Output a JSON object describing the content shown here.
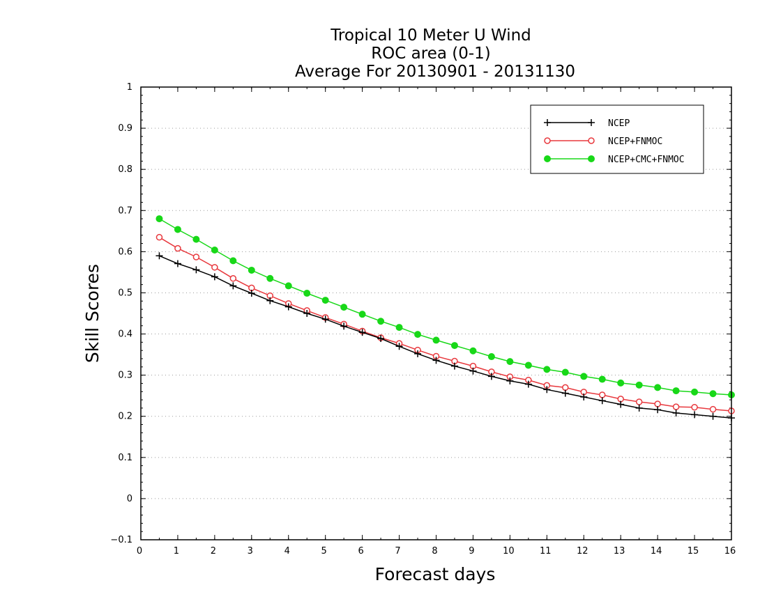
{
  "chart_data": {
    "type": "line",
    "title_lines": [
      "Tropical 10 Meter U Wind",
      "ROC area (0-1)",
      "Average For 20130901 - 20131130"
    ],
    "xlabel": "Forecast days",
    "ylabel": "Skill Scores",
    "xlim": [
      0,
      16
    ],
    "ylim": [
      -0.1,
      1
    ],
    "xticks": [
      "0",
      "1",
      "2",
      "3",
      "4",
      "5",
      "6",
      "7",
      "8",
      "9",
      "10",
      "11",
      "12",
      "13",
      "14",
      "15",
      "16"
    ],
    "yticks": [
      "−0.1",
      "0",
      "0.1",
      "0.2",
      "0.3",
      "0.4",
      "0.5",
      "0.6",
      "0.7",
      "0.8",
      "0.9",
      "1"
    ],
    "ytick_values": [
      -0.1,
      0,
      0.1,
      0.2,
      0.3,
      0.4,
      0.5,
      0.6,
      0.7,
      0.8,
      0.9,
      1
    ],
    "grid": "horizontal dotted",
    "legend_position": "top-right",
    "x": [
      0.5,
      1,
      1.5,
      2,
      2.5,
      3,
      3.5,
      4,
      4.5,
      5,
      5.5,
      6,
      6.5,
      7,
      7.5,
      8,
      8.5,
      9,
      9.5,
      10,
      10.5,
      11,
      11.5,
      12,
      12.5,
      13,
      13.5,
      14,
      14.5,
      15,
      15.5,
      16
    ],
    "series": [
      {
        "name": "NCEP",
        "color": "#000000",
        "marker": "plus",
        "values": [
          0.59,
          0.571,
          0.556,
          0.539,
          0.517,
          0.499,
          0.481,
          0.466,
          0.45,
          0.436,
          0.419,
          0.404,
          0.389,
          0.37,
          0.352,
          0.336,
          0.322,
          0.31,
          0.297,
          0.286,
          0.278,
          0.265,
          0.256,
          0.247,
          0.238,
          0.229,
          0.22,
          0.216,
          0.208,
          0.204,
          0.2,
          0.196
        ]
      },
      {
        "name": "NCEP+FNMOC",
        "color": "#e8383d",
        "marker": "open-circle",
        "values": [
          0.635,
          0.608,
          0.587,
          0.562,
          0.535,
          0.512,
          0.493,
          0.474,
          0.457,
          0.44,
          0.424,
          0.407,
          0.391,
          0.377,
          0.361,
          0.346,
          0.334,
          0.322,
          0.308,
          0.296,
          0.288,
          0.275,
          0.27,
          0.259,
          0.252,
          0.242,
          0.235,
          0.23,
          0.223,
          0.222,
          0.217,
          0.213
        ]
      },
      {
        "name": "NCEP+CMC+FNMOC",
        "color": "#18d818",
        "marker": "filled-circle",
        "values": [
          0.68,
          0.654,
          0.63,
          0.604,
          0.578,
          0.555,
          0.535,
          0.517,
          0.499,
          0.482,
          0.465,
          0.448,
          0.431,
          0.416,
          0.399,
          0.385,
          0.372,
          0.359,
          0.345,
          0.333,
          0.324,
          0.314,
          0.307,
          0.297,
          0.29,
          0.281,
          0.276,
          0.27,
          0.262,
          0.259,
          0.255,
          0.252
        ]
      }
    ]
  }
}
